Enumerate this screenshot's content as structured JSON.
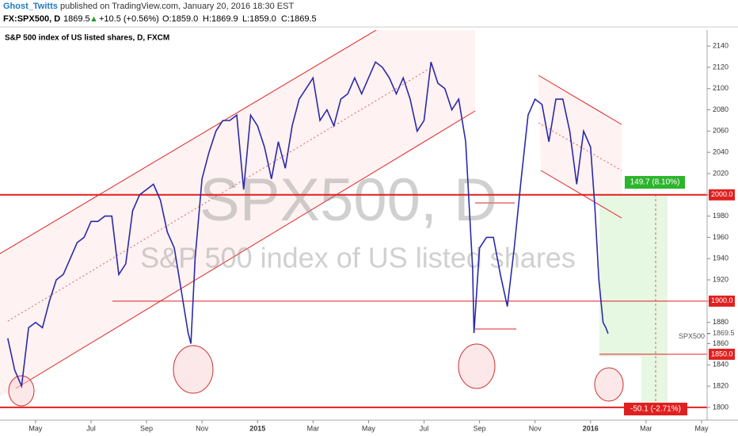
{
  "header": {
    "author": "Ghost_Twitts",
    "published": "published on TradingView.com, January 20, 2016 18:30 EST",
    "symbol": "FX:SPX500, D",
    "last": "1869.5",
    "arrow": "▲",
    "change": "+10.5 (+0.56%)",
    "open": "O:1859.0",
    "high": "H:1869.9",
    "low": "L:1859.0",
    "close": "C:1869.5"
  },
  "chart_data": {
    "type": "line",
    "title": "S&P 500 index of US listed shares, D, FXCM",
    "watermark": "SPX500, D",
    "watermark_subtitle": "S&P 500 index of US listed shares",
    "x": [
      4.0,
      4.25,
      4.5,
      4.75,
      5.0,
      5.25,
      5.5,
      5.75,
      6.0,
      6.25,
      6.5,
      6.75,
      7.0,
      7.25,
      7.5,
      7.75,
      8.0,
      8.25,
      8.5,
      8.75,
      9.0,
      9.25,
      9.5,
      9.75,
      10.0,
      10.25,
      10.5,
      10.6,
      10.75,
      11.0,
      11.25,
      11.5,
      11.75,
      12.0,
      12.25,
      12.5,
      12.75,
      13.0,
      13.25,
      13.5,
      13.75,
      14.0,
      14.25,
      14.5,
      14.75,
      15.0,
      15.25,
      15.5,
      15.75,
      16.0,
      16.25,
      16.5,
      16.75,
      17.0,
      17.25,
      17.5,
      17.75,
      18.0,
      18.25,
      18.5,
      18.75,
      19.0,
      19.25,
      19.5,
      19.75,
      20.0,
      20.25,
      20.5,
      20.75,
      20.8,
      21.0,
      21.25,
      21.5,
      21.75,
      22.0,
      22.25,
      22.5,
      22.75,
      23.0,
      23.25,
      23.5,
      23.75,
      24.0,
      24.25,
      24.5,
      24.75,
      25.0,
      25.15,
      25.3,
      25.45,
      25.55,
      25.63
    ],
    "series": [
      {
        "name": "SPX500",
        "color": "#2a2aa8",
        "values": [
          1865,
          1835,
          1820,
          1875,
          1880,
          1875,
          1900,
          1920,
          1925,
          1940,
          1955,
          1960,
          1975,
          1975,
          1980,
          1980,
          1925,
          1935,
          1985,
          2000,
          2005,
          2010,
          1995,
          1965,
          1950,
          1910,
          1870,
          1860,
          1940,
          2015,
          2040,
          2060,
          2070,
          2070,
          2075,
          2005,
          2075,
          2065,
          2045,
          2015,
          2050,
          2025,
          2065,
          2090,
          2100,
          2110,
          2070,
          2080,
          2065,
          2090,
          2095,
          2110,
          2095,
          2110,
          2125,
          2120,
          2110,
          2095,
          2110,
          2090,
          2060,
          2070,
          2125,
          2105,
          2100,
          2080,
          2090,
          2050,
          1930,
          1870,
          1950,
          1960,
          1960,
          1925,
          1895,
          1950,
          2015,
          2075,
          2090,
          2085,
          2050,
          2090,
          2090,
          2060,
          2010,
          2060,
          2045,
          1990,
          1920,
          1880,
          1875,
          1869.5
        ]
      }
    ],
    "xlim": [
      3.72,
      29.2
    ],
    "xticks": [
      {
        "value": 5,
        "label": "May"
      },
      {
        "value": 7,
        "label": "Jul"
      },
      {
        "value": 9,
        "label": "Sep"
      },
      {
        "value": 11,
        "label": "Nov"
      },
      {
        "value": 13,
        "label": "2015"
      },
      {
        "value": 15,
        "label": "Mar"
      },
      {
        "value": 17,
        "label": "May"
      },
      {
        "value": 19,
        "label": "Jul"
      },
      {
        "value": 21,
        "label": "Sep"
      },
      {
        "value": 23,
        "label": "Nov"
      },
      {
        "value": 25,
        "label": "2016"
      },
      {
        "value": 27,
        "label": "Mar"
      },
      {
        "value": 29,
        "label": "May"
      }
    ],
    "ylim": [
      1788,
      2155
    ],
    "yticks": [
      1800,
      1820,
      1840,
      1860,
      1880,
      1900,
      1920,
      1940,
      1960,
      1980,
      2000,
      2020,
      2040,
      2060,
      2080,
      2100,
      2120,
      2140
    ],
    "levels": [
      {
        "value": 2000,
        "label": "2000.0"
      },
      {
        "value": 1900,
        "label": "1900.0"
      },
      {
        "value": 1850,
        "label": "1850.0"
      },
      {
        "value": 1800
      }
    ],
    "last_price": {
      "value": 1869.5,
      "label": "1869.5"
    },
    "gain_annotation": "149.7 (8.10%)",
    "loss_annotation": "-50.1 (-2.71%)",
    "grid": false
  }
}
